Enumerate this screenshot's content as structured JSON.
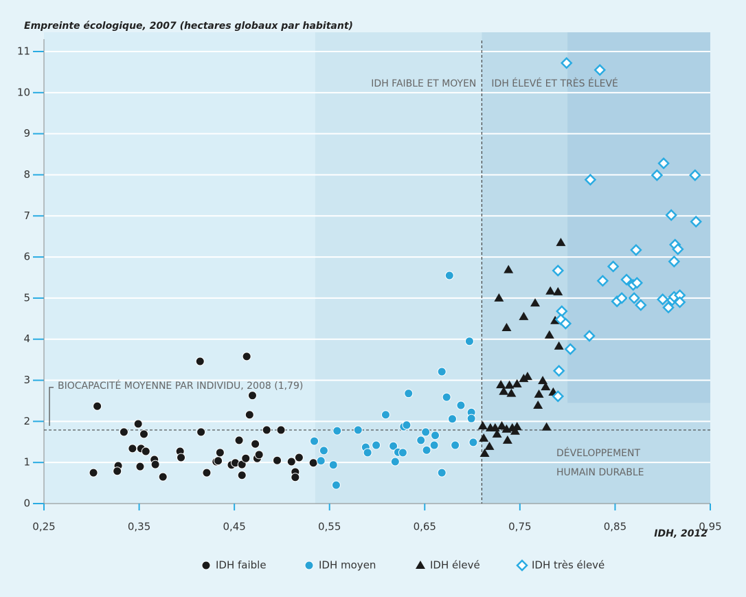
{
  "chart_data": {
    "type": "scatter",
    "title": "Empreinte écologique, 2007 (hectares globaux par habitant)",
    "x_label": "IDH, 2012",
    "xlim": [
      0.25,
      0.95
    ],
    "ylim": [
      0,
      11
    ],
    "xticks": [
      {
        "value": 0.25,
        "label": "0,25"
      },
      {
        "value": 0.35,
        "label": "0,35"
      },
      {
        "value": 0.45,
        "label": "0,45"
      },
      {
        "value": 0.55,
        "label": "0,55"
      },
      {
        "value": 0.65,
        "label": "0,65"
      },
      {
        "value": 0.75,
        "label": "0,75"
      },
      {
        "value": 0.85,
        "label": "0,85"
      },
      {
        "value": 0.95,
        "label": "0,95"
      }
    ],
    "yticks": [
      0,
      1,
      2,
      3,
      4,
      5,
      6,
      7,
      8,
      9,
      10,
      11
    ],
    "grid": true,
    "regions": [
      {
        "x": [
          0.535,
          0.95
        ],
        "color": "#cde6f1"
      },
      {
        "x": [
          0.71,
          0.95
        ],
        "color": "#bddbea"
      },
      {
        "x": [
          0.8,
          0.95
        ],
        "y": 2.45,
        "color": "#aed0e4"
      }
    ],
    "reference_lines": {
      "y": 1.79,
      "x": 0.71
    },
    "annotations": {
      "low": "IDH FAIBLE ET MOYEN",
      "high": "IDH ÉLEVÉ ET TRÈS ÉLEVÉ",
      "biocapacity": "BIOCAPACITÉ MOYENNE PAR INDIVIDU, 2008 (1,79)",
      "sustainable": [
        "DÉVELOPPEMENT",
        "HUMAIN DURABLE"
      ]
    },
    "legend": "bottom-right",
    "series": [
      {
        "name": "IDH faible",
        "color": "#1a1a1a",
        "marker": "circle",
        "x": [
          0.302,
          0.306,
          0.328,
          0.327,
          0.334,
          0.343,
          0.349,
          0.352,
          0.351,
          0.355,
          0.357,
          0.366,
          0.367,
          0.375,
          0.393,
          0.394,
          0.415,
          0.414,
          0.421,
          0.431,
          0.435,
          0.433,
          0.447,
          0.451,
          0.455,
          0.458,
          0.458,
          0.462,
          0.463,
          0.466,
          0.469,
          0.472,
          0.474,
          0.476,
          0.484,
          0.499,
          0.495,
          0.51,
          0.514,
          0.514,
          0.518,
          0.533
        ],
        "values": [
          0.75,
          2.37,
          0.92,
          0.79,
          1.74,
          1.34,
          1.94,
          1.34,
          0.9,
          1.69,
          1.27,
          1.07,
          0.95,
          0.65,
          1.27,
          1.12,
          1.74,
          3.46,
          0.75,
          1.02,
          1.24,
          1.04,
          0.94,
          0.99,
          1.54,
          0.95,
          0.69,
          1.1,
          3.58,
          2.16,
          2.63,
          1.45,
          1.1,
          1.19,
          1.79,
          1.79,
          1.05,
          1.02,
          0.77,
          0.64,
          1.12,
          0.99
        ]
      },
      {
        "name": "IDH moyen",
        "color": "#29a3d6",
        "marker": "circle",
        "x": [
          0.534,
          0.541,
          0.544,
          0.554,
          0.557,
          0.558,
          0.58,
          0.588,
          0.59,
          0.599,
          0.609,
          0.617,
          0.619,
          0.622,
          0.627,
          0.628,
          0.631,
          0.633,
          0.646,
          0.651,
          0.652,
          0.66,
          0.661,
          0.668,
          0.668,
          0.673,
          0.676,
          0.679,
          0.682,
          0.688,
          0.697,
          0.699,
          0.699,
          0.701
        ],
        "values": [
          1.52,
          1.04,
          1.29,
          0.94,
          0.45,
          1.77,
          1.79,
          1.37,
          1.24,
          1.42,
          2.16,
          1.4,
          1.02,
          1.25,
          1.24,
          1.87,
          1.91,
          2.68,
          1.54,
          1.74,
          1.3,
          1.42,
          1.66,
          3.21,
          0.75,
          2.59,
          5.55,
          2.06,
          1.42,
          2.39,
          3.95,
          2.22,
          2.07,
          1.49
        ]
      },
      {
        "name": "IDH élevé",
        "color": "#1a1a1a",
        "marker": "triangle",
        "x": [
          0.711,
          0.712,
          0.713,
          0.718,
          0.719,
          0.724,
          0.726,
          0.728,
          0.73,
          0.731,
          0.733,
          0.736,
          0.736,
          0.737,
          0.738,
          0.739,
          0.741,
          0.742,
          0.745,
          0.747,
          0.747,
          0.754,
          0.754,
          0.758,
          0.766,
          0.769,
          0.77,
          0.774,
          0.777,
          0.778,
          0.781,
          0.782,
          0.785,
          0.787,
          0.79,
          0.791,
          0.793
        ],
        "values": [
          1.89,
          1.59,
          1.22,
          1.39,
          1.84,
          1.84,
          1.69,
          5.0,
          2.89,
          1.89,
          2.73,
          4.28,
          1.81,
          1.54,
          5.69,
          2.88,
          2.68,
          1.84,
          1.76,
          2.91,
          1.87,
          3.04,
          4.55,
          3.09,
          4.88,
          2.39,
          2.66,
          2.99,
          2.84,
          1.86,
          4.1,
          5.17,
          2.71,
          4.45,
          5.15,
          3.83,
          6.35
        ]
      },
      {
        "name": "IDH très élevé",
        "color": "#29abe2",
        "marker": "diamond",
        "x": [
          0.799,
          0.834,
          0.79,
          0.791,
          0.79,
          0.794,
          0.793,
          0.798,
          0.803,
          0.824,
          0.823,
          0.837,
          0.848,
          0.852,
          0.857,
          0.862,
          0.869,
          0.87,
          0.873,
          0.872,
          0.877,
          0.894,
          0.901,
          0.909,
          0.9,
          0.906,
          0.91,
          0.912,
          0.912,
          0.913,
          0.916,
          0.918,
          0.918,
          0.934,
          0.935
        ],
        "values": [
          10.72,
          10.55,
          5.67,
          3.23,
          2.61,
          4.68,
          4.48,
          4.38,
          3.76,
          7.88,
          4.08,
          5.42,
          5.77,
          4.92,
          5.0,
          5.45,
          5.32,
          5.0,
          5.37,
          6.17,
          4.83,
          7.99,
          8.28,
          7.02,
          4.97,
          4.77,
          4.95,
          5.03,
          5.89,
          6.3,
          6.19,
          5.07,
          4.9,
          7.99,
          6.86
        ]
      }
    ]
  }
}
